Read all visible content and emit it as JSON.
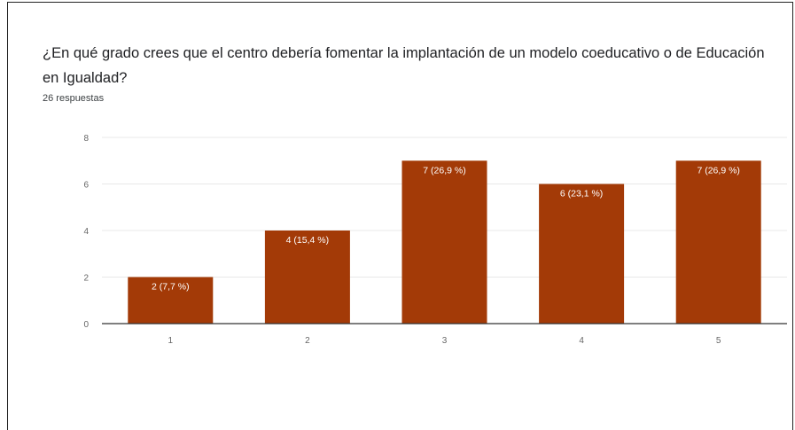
{
  "question": {
    "title": "¿En qué grado crees que  el centro debería fomentar la implantación de un modelo coeducativo o de Educación en Igualdad?",
    "response_count": "26 respuestas"
  },
  "colors": {
    "bar": "#a33a07",
    "grid": "#e8e8e8",
    "axis": "#333333",
    "tick_text": "#666666",
    "label_text": "#ffffff"
  },
  "chart_data": {
    "type": "bar",
    "categories": [
      "1",
      "2",
      "3",
      "4",
      "5"
    ],
    "values": [
      2,
      4,
      7,
      6,
      7
    ],
    "data_labels": [
      "2 (7,7 %)",
      "4 (15,4 %)",
      "7 (26,9 %)",
      "6 (23,1 %)",
      "7 (26,9 %)"
    ],
    "y_ticks": [
      "0",
      "2",
      "4",
      "6",
      "8"
    ],
    "ylim": [
      0,
      8
    ],
    "grid": true,
    "legend": "none"
  }
}
